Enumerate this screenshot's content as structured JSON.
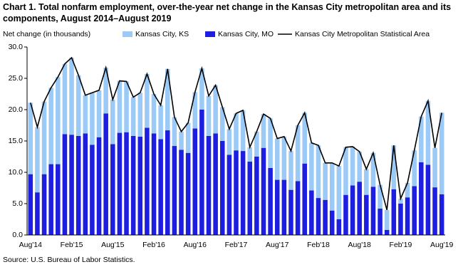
{
  "chart_data": {
    "type": "bar",
    "stacked": true,
    "title": "Chart 1. Total nonfarm employment, over-the-year net change in the Kansas  City metropolitan area and its components, August  2014–August  2019",
    "y_label": "Net change (in thousands)",
    "source": "Source: U.S. Bureau of Labor Statistics.",
    "categories": [
      "Aug'14",
      null,
      null,
      null,
      null,
      null,
      "Feb'15",
      null,
      null,
      null,
      null,
      null,
      "Aug'15",
      null,
      null,
      null,
      null,
      null,
      "Feb'16",
      null,
      null,
      null,
      null,
      null,
      "Aug'16",
      null,
      null,
      null,
      null,
      null,
      "Feb'17",
      null,
      null,
      null,
      null,
      null,
      "Aug'17",
      null,
      null,
      null,
      null,
      null,
      "Feb'18",
      null,
      null,
      null,
      null,
      null,
      "Aug'18",
      null,
      null,
      null,
      null,
      null,
      "Feb'19",
      null,
      null,
      null,
      null,
      null,
      "Aug'19"
    ],
    "series": [
      {
        "name": "Kansas City, KS",
        "type": "bar",
        "color": "#9ccaf6",
        "values": [
          11.4,
          10.4,
          11.6,
          12.2,
          13.9,
          11.2,
          12.3,
          9.7,
          6.1,
          8.3,
          7.5,
          7.3,
          7.1,
          8.3,
          8.1,
          6.2,
          7.0,
          8.6,
          6.3,
          5.4,
          9.8,
          4.6,
          2.9,
          4.8,
          5.8,
          6.6,
          6.4,
          7.7,
          5.4,
          4.1,
          5.9,
          6.5,
          2.3,
          4.0,
          5.4,
          7.9,
          6.6,
          6.9,
          6.2,
          8.9,
          8.1,
          7.6,
          8.4,
          5.9,
          7.6,
          8.5,
          7.6,
          6.2,
          4.8,
          4.1,
          5.4,
          3.8,
          3.2,
          7.0,
          0.8,
          2.3,
          5.7,
          7.3,
          10.2,
          6.3,
          13.0
        ]
      },
      {
        "name": "Kansas City, MO",
        "type": "bar",
        "color": "#1e1ee0",
        "values": [
          9.7,
          6.8,
          9.7,
          11.3,
          11.3,
          16.1,
          16.0,
          15.8,
          16.2,
          14.4,
          15.6,
          19.4,
          14.5,
          16.3,
          16.4,
          15.8,
          15.7,
          17.1,
          16.2,
          15.3,
          16.7,
          14.2,
          13.6,
          13.1,
          17.0,
          20.0,
          15.8,
          16.2,
          15.0,
          12.8,
          13.5,
          13.4,
          11.7,
          12.5,
          13.9,
          10.7,
          8.8,
          8.8,
          7.2,
          8.6,
          11.4,
          7.1,
          5.9,
          5.6,
          3.9,
          2.5,
          6.4,
          7.9,
          8.5,
          6.4,
          7.7,
          4.2,
          0.8,
          7.3,
          5.0,
          6.0,
          7.8,
          11.6,
          11.2,
          7.6,
          6.5
        ]
      },
      {
        "name": "Kansas City Metropolitan Statistical Area",
        "type": "line",
        "color": "#000000",
        "values": [
          21.1,
          17.2,
          21.3,
          23.5,
          25.2,
          27.3,
          28.3,
          25.5,
          22.3,
          22.7,
          23.1,
          26.7,
          21.6,
          24.6,
          24.5,
          22.0,
          22.7,
          25.7,
          22.5,
          20.7,
          26.5,
          18.8,
          16.5,
          17.9,
          22.8,
          26.6,
          22.2,
          23.9,
          20.4,
          16.9,
          19.4,
          19.9,
          14.0,
          16.5,
          19.3,
          18.6,
          15.4,
          15.7,
          13.4,
          17.5,
          19.5,
          14.7,
          14.3,
          11.5,
          11.5,
          11.0,
          14.0,
          14.1,
          13.3,
          10.5,
          13.1,
          8.0,
          4.0,
          14.3,
          5.8,
          8.3,
          13.5,
          18.9,
          21.4,
          13.9,
          19.5
        ]
      }
    ],
    "ylim": [
      0,
      30
    ],
    "yticks": [
      {
        "value": 0,
        "label": "0.0"
      },
      {
        "value": 5,
        "label": "5.0"
      },
      {
        "value": 10,
        "label": "10.0"
      },
      {
        "value": 15,
        "label": "15.0"
      },
      {
        "value": 20,
        "label": "20.0"
      },
      {
        "value": 25,
        "label": "25.0"
      },
      {
        "value": 30,
        "label": "30.0"
      }
    ],
    "grid": false
  }
}
